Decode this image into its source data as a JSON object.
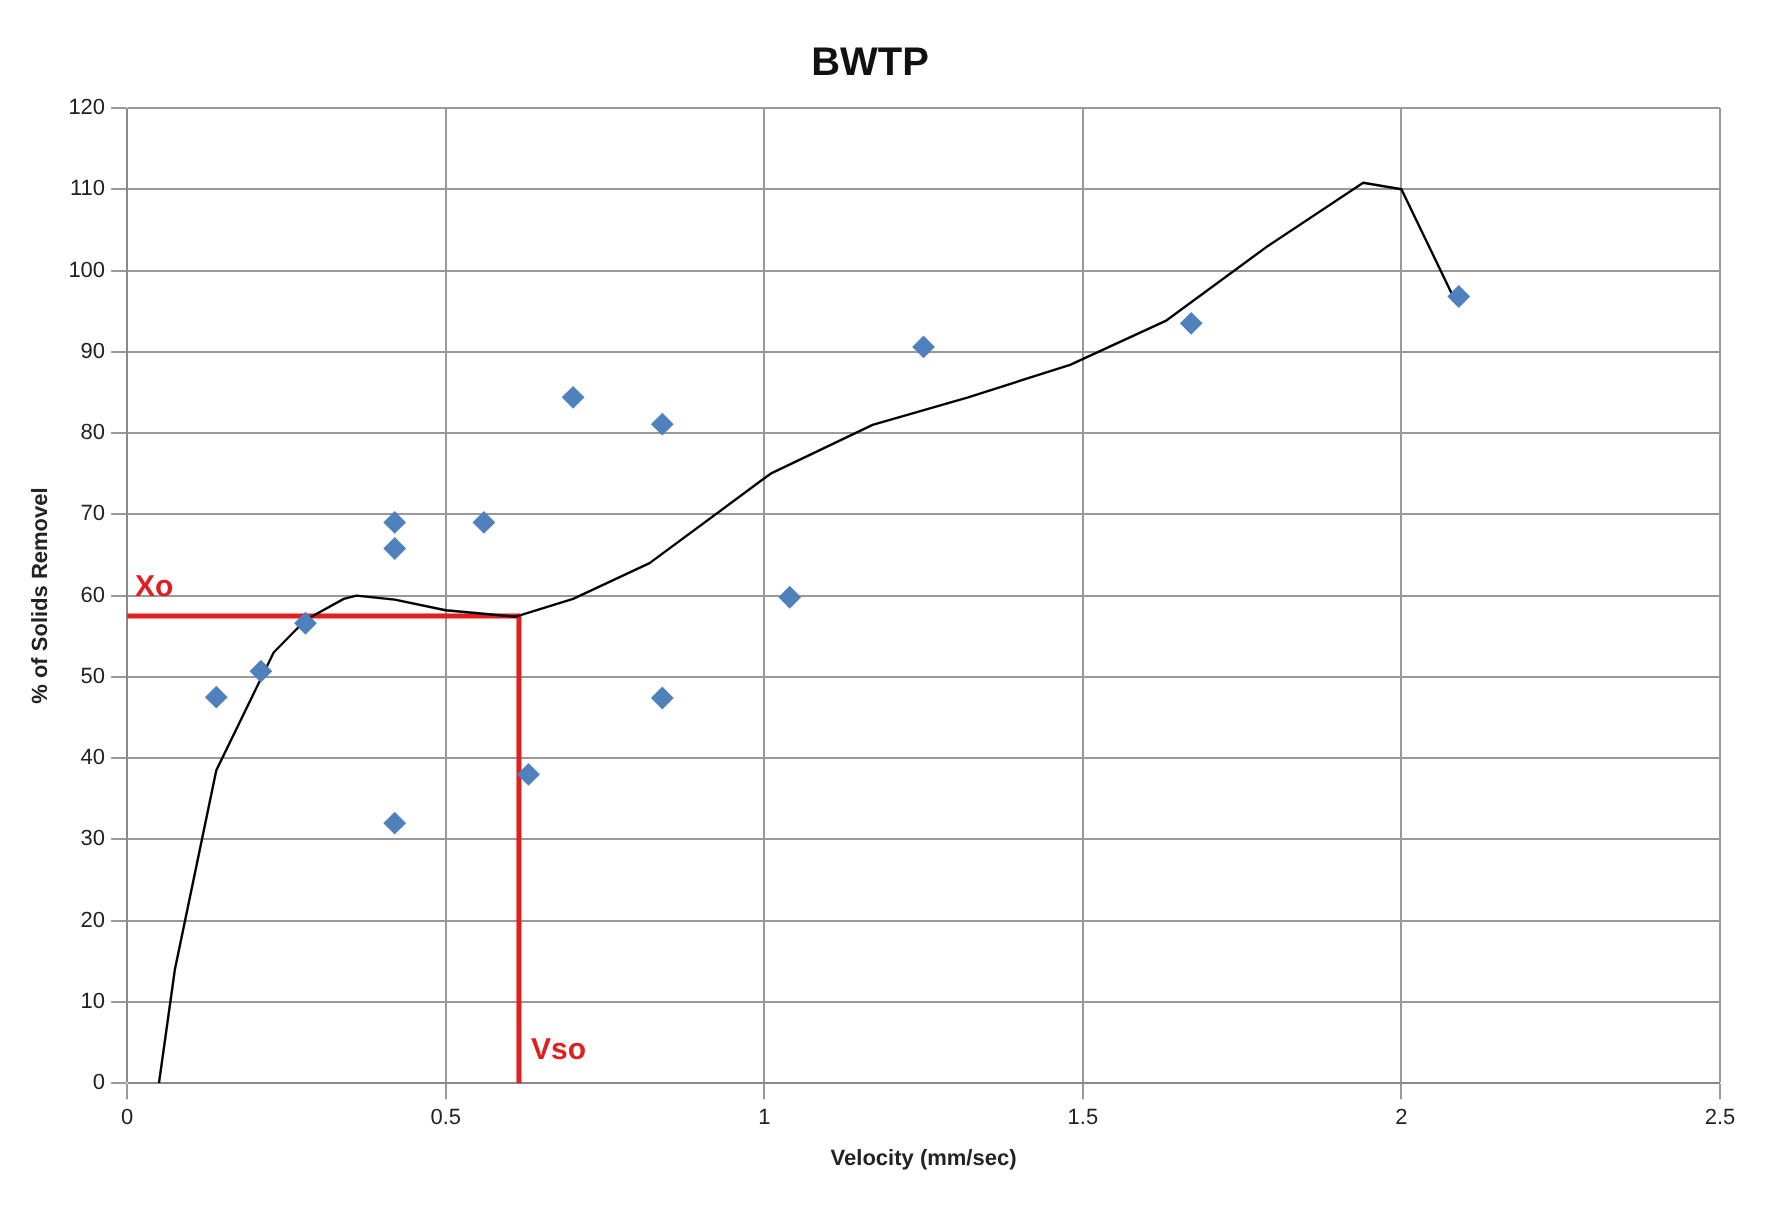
{
  "chart_data": {
    "type": "scatter",
    "title": "BWTP",
    "xlabel": "Velocity (mm/sec)",
    "ylabel": "% of Solids Removel",
    "xlim": [
      0,
      2.5
    ],
    "xticks": [
      0,
      0.5,
      1,
      1.5,
      2,
      2.5
    ],
    "ylim": [
      0,
      120
    ],
    "yticks": [
      0,
      10,
      20,
      30,
      40,
      50,
      60,
      70,
      80,
      90,
      100,
      110,
      120
    ],
    "grid": true,
    "legend": false,
    "series": [
      {
        "type": "scatter",
        "color": "#4f81bd",
        "marker": "diamond",
        "x": [
          0.14,
          0.21,
          0.28,
          0.42,
          0.42,
          0.42,
          0.56,
          0.63,
          0.7,
          0.84,
          0.84,
          1.04,
          1.25,
          1.67,
          2.09
        ],
        "values": [
          47.5,
          50.7,
          56.6,
          69,
          65.8,
          32,
          69,
          38,
          84.4,
          81.1,
          47.4,
          59.8,
          90.6,
          93.5,
          96.8
        ]
      },
      {
        "type": "line",
        "color": "#000000",
        "marker": "none",
        "x": [
          0.05,
          0.075,
          0.14,
          0.23,
          0.28,
          0.34,
          0.36,
          0.42,
          0.5,
          0.61,
          0.7,
          0.82,
          1.01,
          1.17,
          1.32,
          1.48,
          1.63,
          1.79,
          1.94,
          2.0,
          2.08
        ],
        "values": [
          0,
          14,
          38.5,
          53,
          57,
          59.6,
          60,
          59.5,
          58.2,
          57.4,
          59.6,
          64,
          75,
          81,
          84.4,
          88.4,
          93.8,
          103,
          110.8,
          110,
          97
        ]
      },
      {
        "type": "line",
        "color": "#e02020",
        "marker": "none",
        "x": [
          0,
          0.615,
          0.615
        ],
        "values": [
          57.5,
          57.5,
          0
        ]
      }
    ],
    "annotations": [
      "Xo",
      "Vso"
    ]
  }
}
